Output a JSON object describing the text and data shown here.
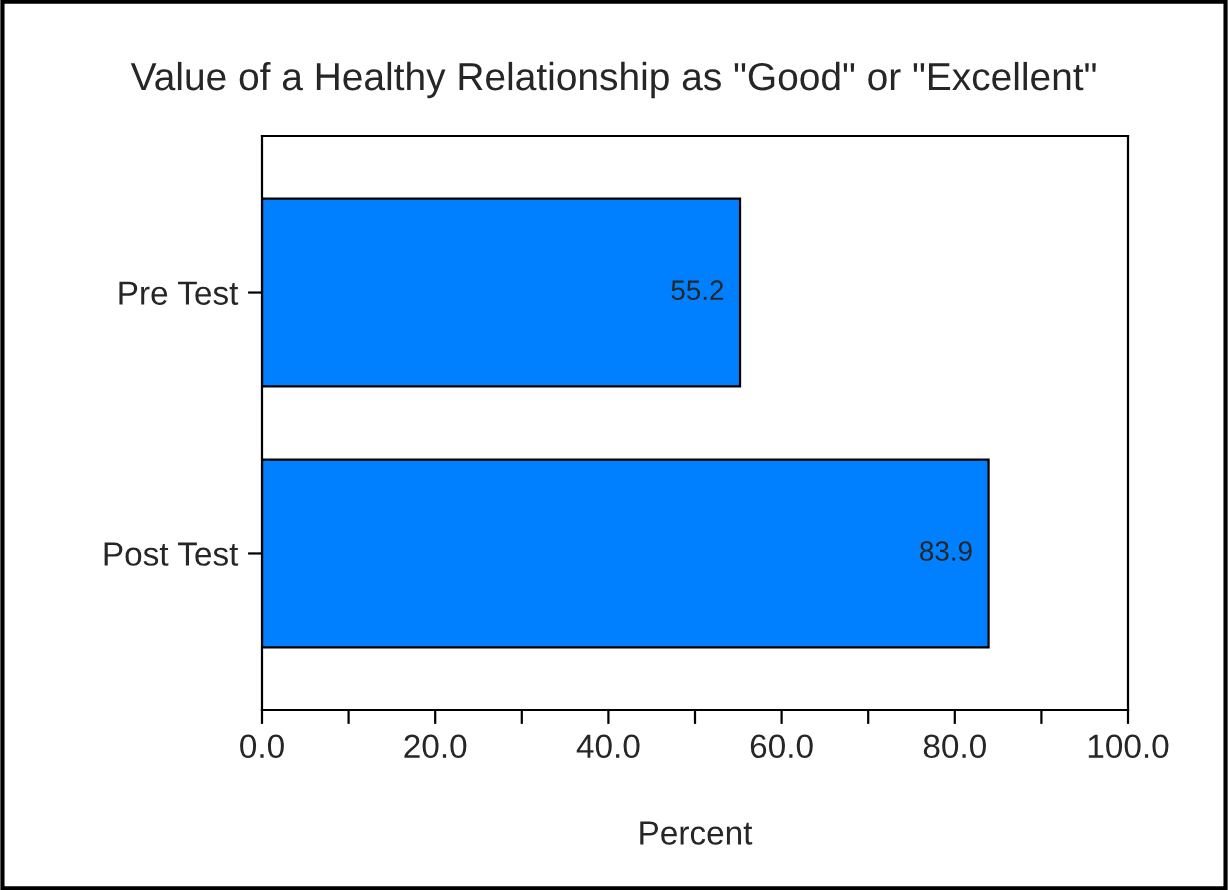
{
  "chart_data": {
    "type": "bar",
    "orientation": "horizontal",
    "title": "Value of a Healthy Relationship as \"Good\" or \"Excellent\"",
    "xlabel": "Percent",
    "categories": [
      "Pre Test",
      "Post Test"
    ],
    "values": [
      55.2,
      83.9
    ],
    "color": "#0080ff",
    "xlim": [
      0,
      100
    ],
    "xticks": [
      {
        "value": 0,
        "label": "0.0"
      },
      {
        "value": 10,
        "label": null
      },
      {
        "value": 20,
        "label": "20.0"
      },
      {
        "value": 30,
        "label": null
      },
      {
        "value": 40,
        "label": "40.0"
      },
      {
        "value": 50,
        "label": null
      },
      {
        "value": 60,
        "label": "60.0"
      },
      {
        "value": 70,
        "label": null
      },
      {
        "value": 80,
        "label": "80.0"
      },
      {
        "value": 90,
        "label": null
      },
      {
        "value": 100,
        "label": "100.0"
      }
    ],
    "data_labels": true,
    "grid": false,
    "legend": false
  }
}
